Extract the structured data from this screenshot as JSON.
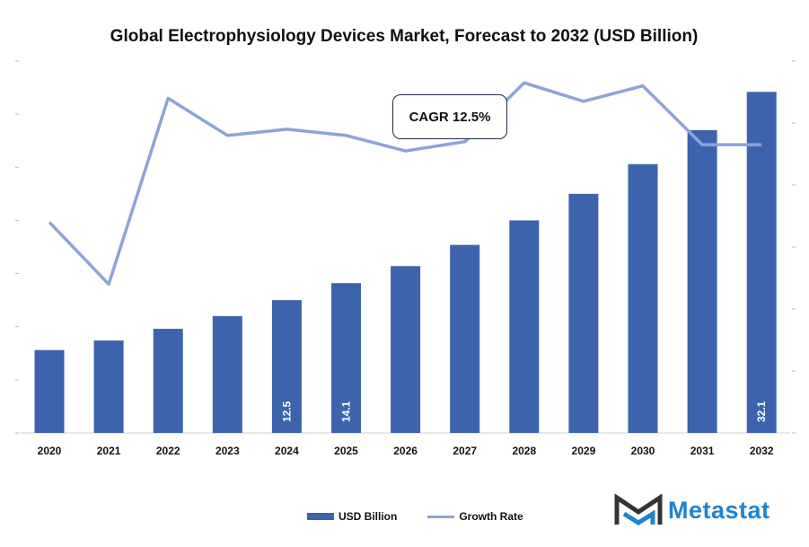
{
  "chart_data": {
    "type": "bar",
    "title": "Global Electrophysiology Devices Market, Forecast to 2032 (USD Billion)",
    "categories": [
      "2020",
      "2021",
      "2022",
      "2023",
      "2024",
      "2025",
      "2026",
      "2027",
      "2028",
      "2029",
      "2030",
      "2031",
      "2032"
    ],
    "series": [
      {
        "name": "USD Billion",
        "type": "bar",
        "axis": "left",
        "color": "#3c63ac",
        "values": [
          7.8,
          8.7,
          9.8,
          11.0,
          12.5,
          14.1,
          15.7,
          17.7,
          20.0,
          22.5,
          25.3,
          28.5,
          32.1
        ],
        "data_labels": {
          "2024": "12.5",
          "2025": "14.1",
          "2032": "32.1"
        }
      },
      {
        "name": "Growth Rate",
        "type": "line",
        "axis": "right",
        "color": "#8ea3d9",
        "values": [
          3.4,
          2.4,
          5.4,
          4.8,
          4.9,
          4.8,
          4.55,
          4.7,
          5.65,
          5.35,
          5.6,
          4.65,
          4.65
        ]
      }
    ],
    "ylim_left": [
      0,
      35
    ],
    "ylim_right": [
      0,
      6
    ],
    "tick_labels_shown": false,
    "grid": false,
    "legend_position": "bottom",
    "annotation": "CAGR 12.5%"
  },
  "brand": {
    "name": "Metastat"
  }
}
